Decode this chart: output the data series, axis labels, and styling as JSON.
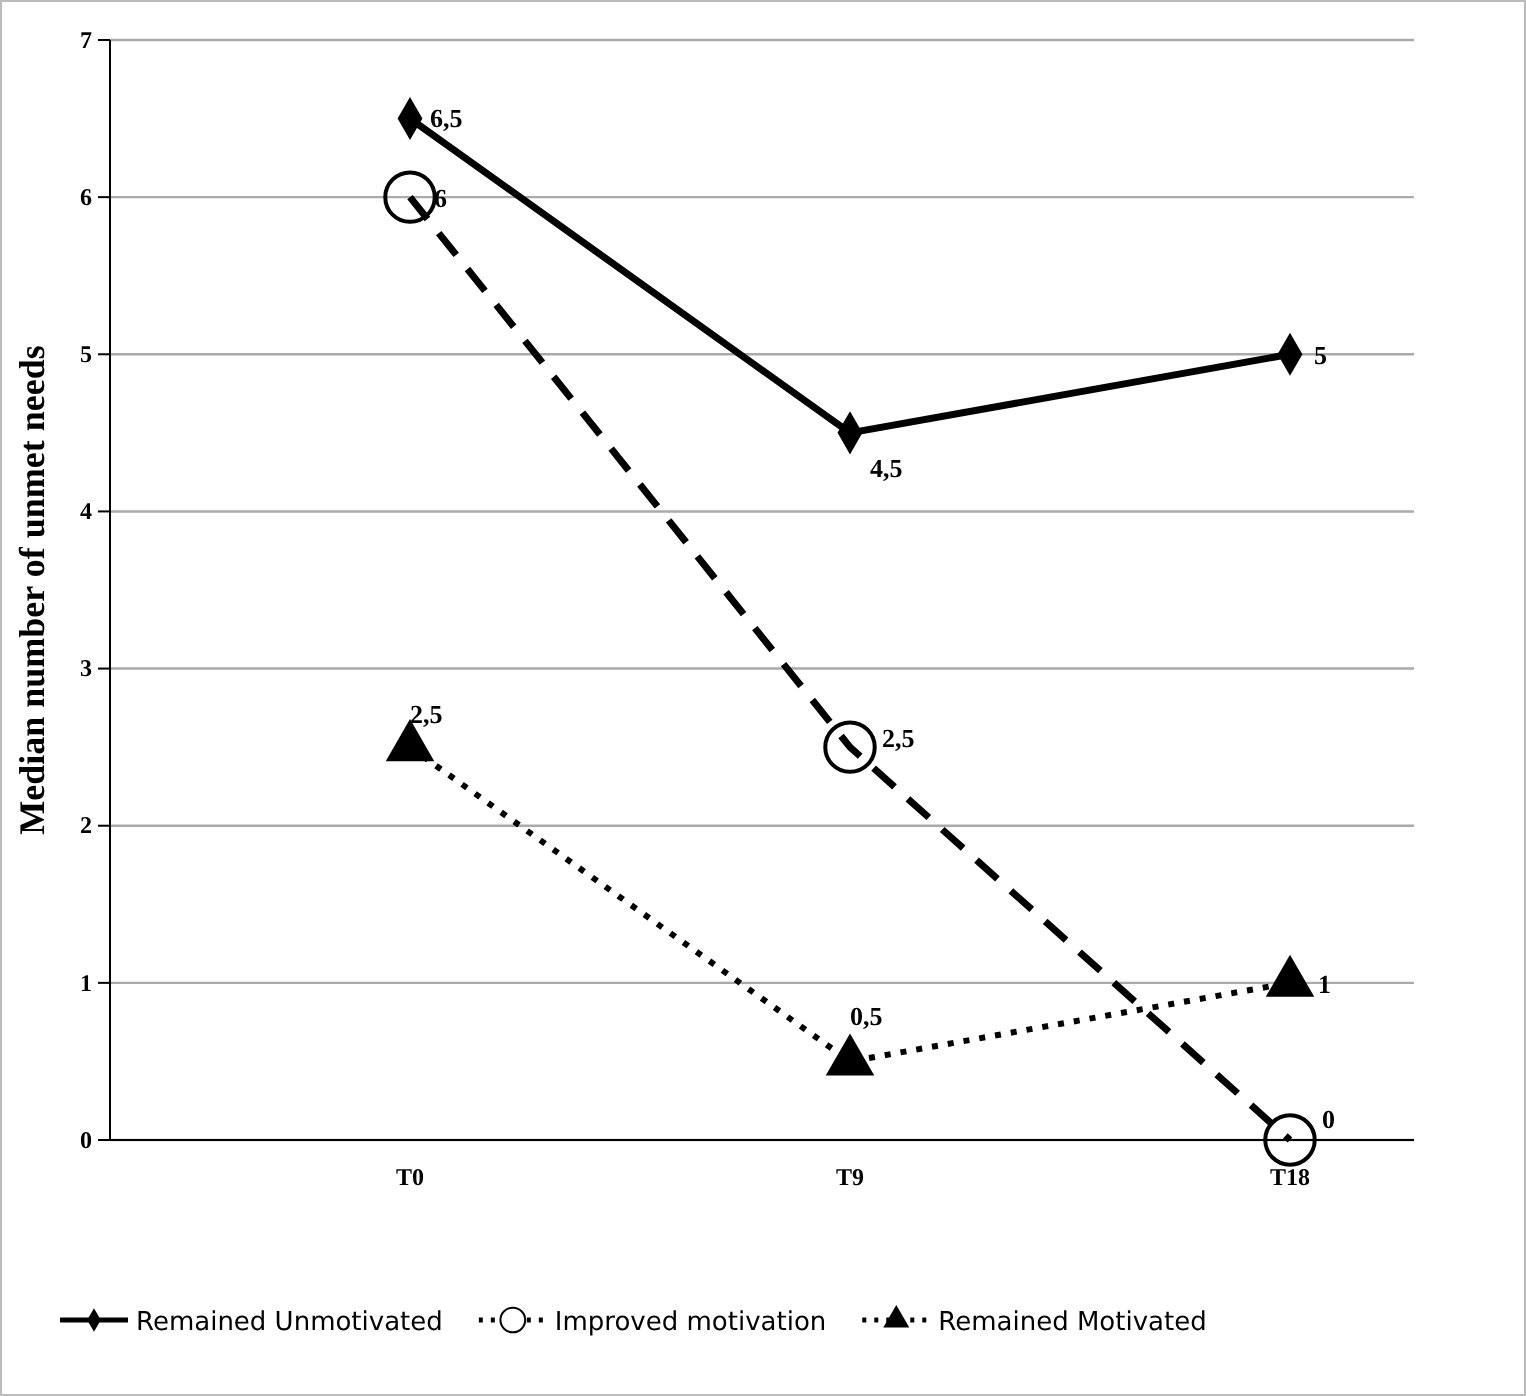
{
  "chart_data": {
    "type": "line",
    "ylabel": "Median number of unmet needs",
    "categories": [
      "T0",
      "T9",
      "T18"
    ],
    "ylim": [
      0,
      7
    ],
    "yticks": [
      0,
      1,
      2,
      3,
      4,
      5,
      6,
      7
    ],
    "grid": "y",
    "legend": "bottom",
    "series": [
      {
        "name": "Remained Unmotivated",
        "color": "#000000",
        "values": [
          6.5,
          4.5,
          5
        ],
        "value_labels": [
          "6,5",
          "4,5",
          "5"
        ],
        "marker": "diamond",
        "line_style": "solid"
      },
      {
        "name": "Improved motivation",
        "color": "#000000",
        "values": [
          6,
          2.5,
          0
        ],
        "value_labels": [
          "6",
          "2,5",
          "0"
        ],
        "marker": "circle",
        "line_style": "dashed"
      },
      {
        "name": "Remained Motivated",
        "color": "#000000",
        "values": [
          2.5,
          0.5,
          1
        ],
        "value_labels": [
          "2,5",
          "0,5",
          "1"
        ],
        "marker": "triangle",
        "line_style": "dotted"
      }
    ]
  }
}
